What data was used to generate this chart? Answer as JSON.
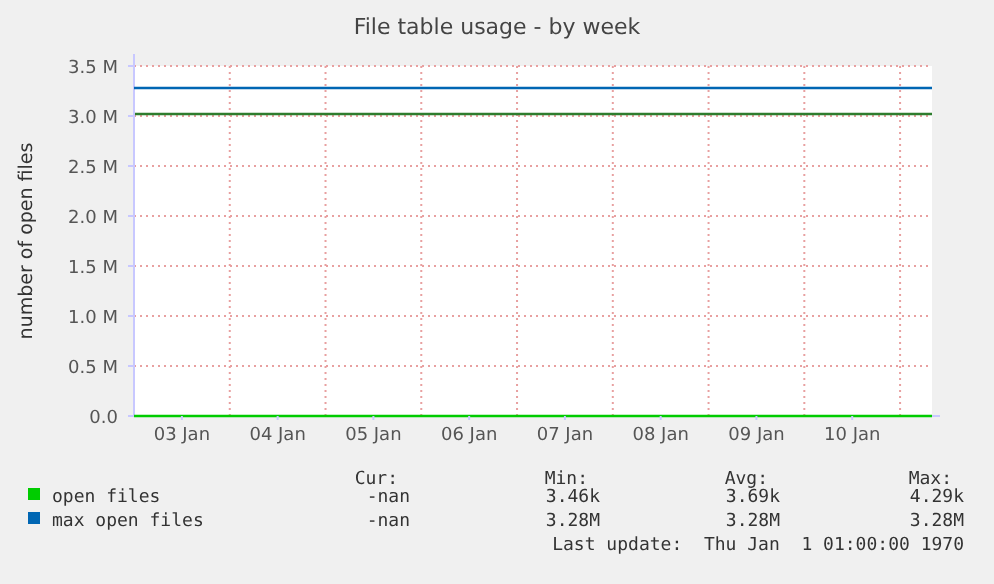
{
  "chart_data": {
    "type": "line",
    "title": "File table usage - by week",
    "ylabel": "number of open files",
    "x": [
      "1970-01-03T00:00",
      "1970-01-05T12:00",
      "1970-01-07T12:00",
      "1970-01-09T12:00",
      "1970-01-11T08:00"
    ],
    "series": [
      {
        "name": "open files",
        "color": "#00cc00",
        "values": [
          0,
          0,
          0,
          0,
          0
        ]
      },
      {
        "name": "max open files",
        "color": "#0066b3",
        "values": [
          3280000,
          3280000,
          3280000,
          3280000,
          3280000
        ]
      }
    ],
    "ref_lines": [
      {
        "axis": "y",
        "value": 3020000,
        "color": "#2e7d2e"
      }
    ],
    "xlim": [
      "1970-01-03T00:00",
      "1970-01-11T08:00"
    ],
    "xticks": [
      {
        "value": "1970-01-03T12:00",
        "label": "03 Jan"
      },
      {
        "value": "1970-01-04T12:00",
        "label": "04 Jan"
      },
      {
        "value": "1970-01-05T12:00",
        "label": "05 Jan"
      },
      {
        "value": "1970-01-06T12:00",
        "label": "06 Jan"
      },
      {
        "value": "1970-01-07T12:00",
        "label": "07 Jan"
      },
      {
        "value": "1970-01-08T12:00",
        "label": "08 Jan"
      },
      {
        "value": "1970-01-09T12:00",
        "label": "09 Jan"
      },
      {
        "value": "1970-01-10T12:00",
        "label": "10 Jan"
      }
    ],
    "ylim": [
      0,
      3500000
    ],
    "yticks": [
      {
        "value": 0,
        "label": "0.0"
      },
      {
        "value": 500000,
        "label": "0.5 M"
      },
      {
        "value": 1000000,
        "label": "1.0 M"
      },
      {
        "value": 1500000,
        "label": "1.5 M"
      },
      {
        "value": 2000000,
        "label": "2.0 M"
      },
      {
        "value": 2500000,
        "label": "2.5 M"
      },
      {
        "value": 3000000,
        "label": "3.0 M"
      },
      {
        "value": 3500000,
        "label": "3.5 M"
      }
    ],
    "grid": true,
    "legend": "bottom",
    "annotations": [
      "Cur:",
      "Min:",
      "Avg:",
      "Max:",
      "-nan",
      "3.46k",
      "3.69k",
      "4.29k",
      "-nan",
      "3.28M",
      "3.28M",
      "3.28M",
      "Last update:  Thu Jan  1 01:00:00 1970"
    ]
  }
}
